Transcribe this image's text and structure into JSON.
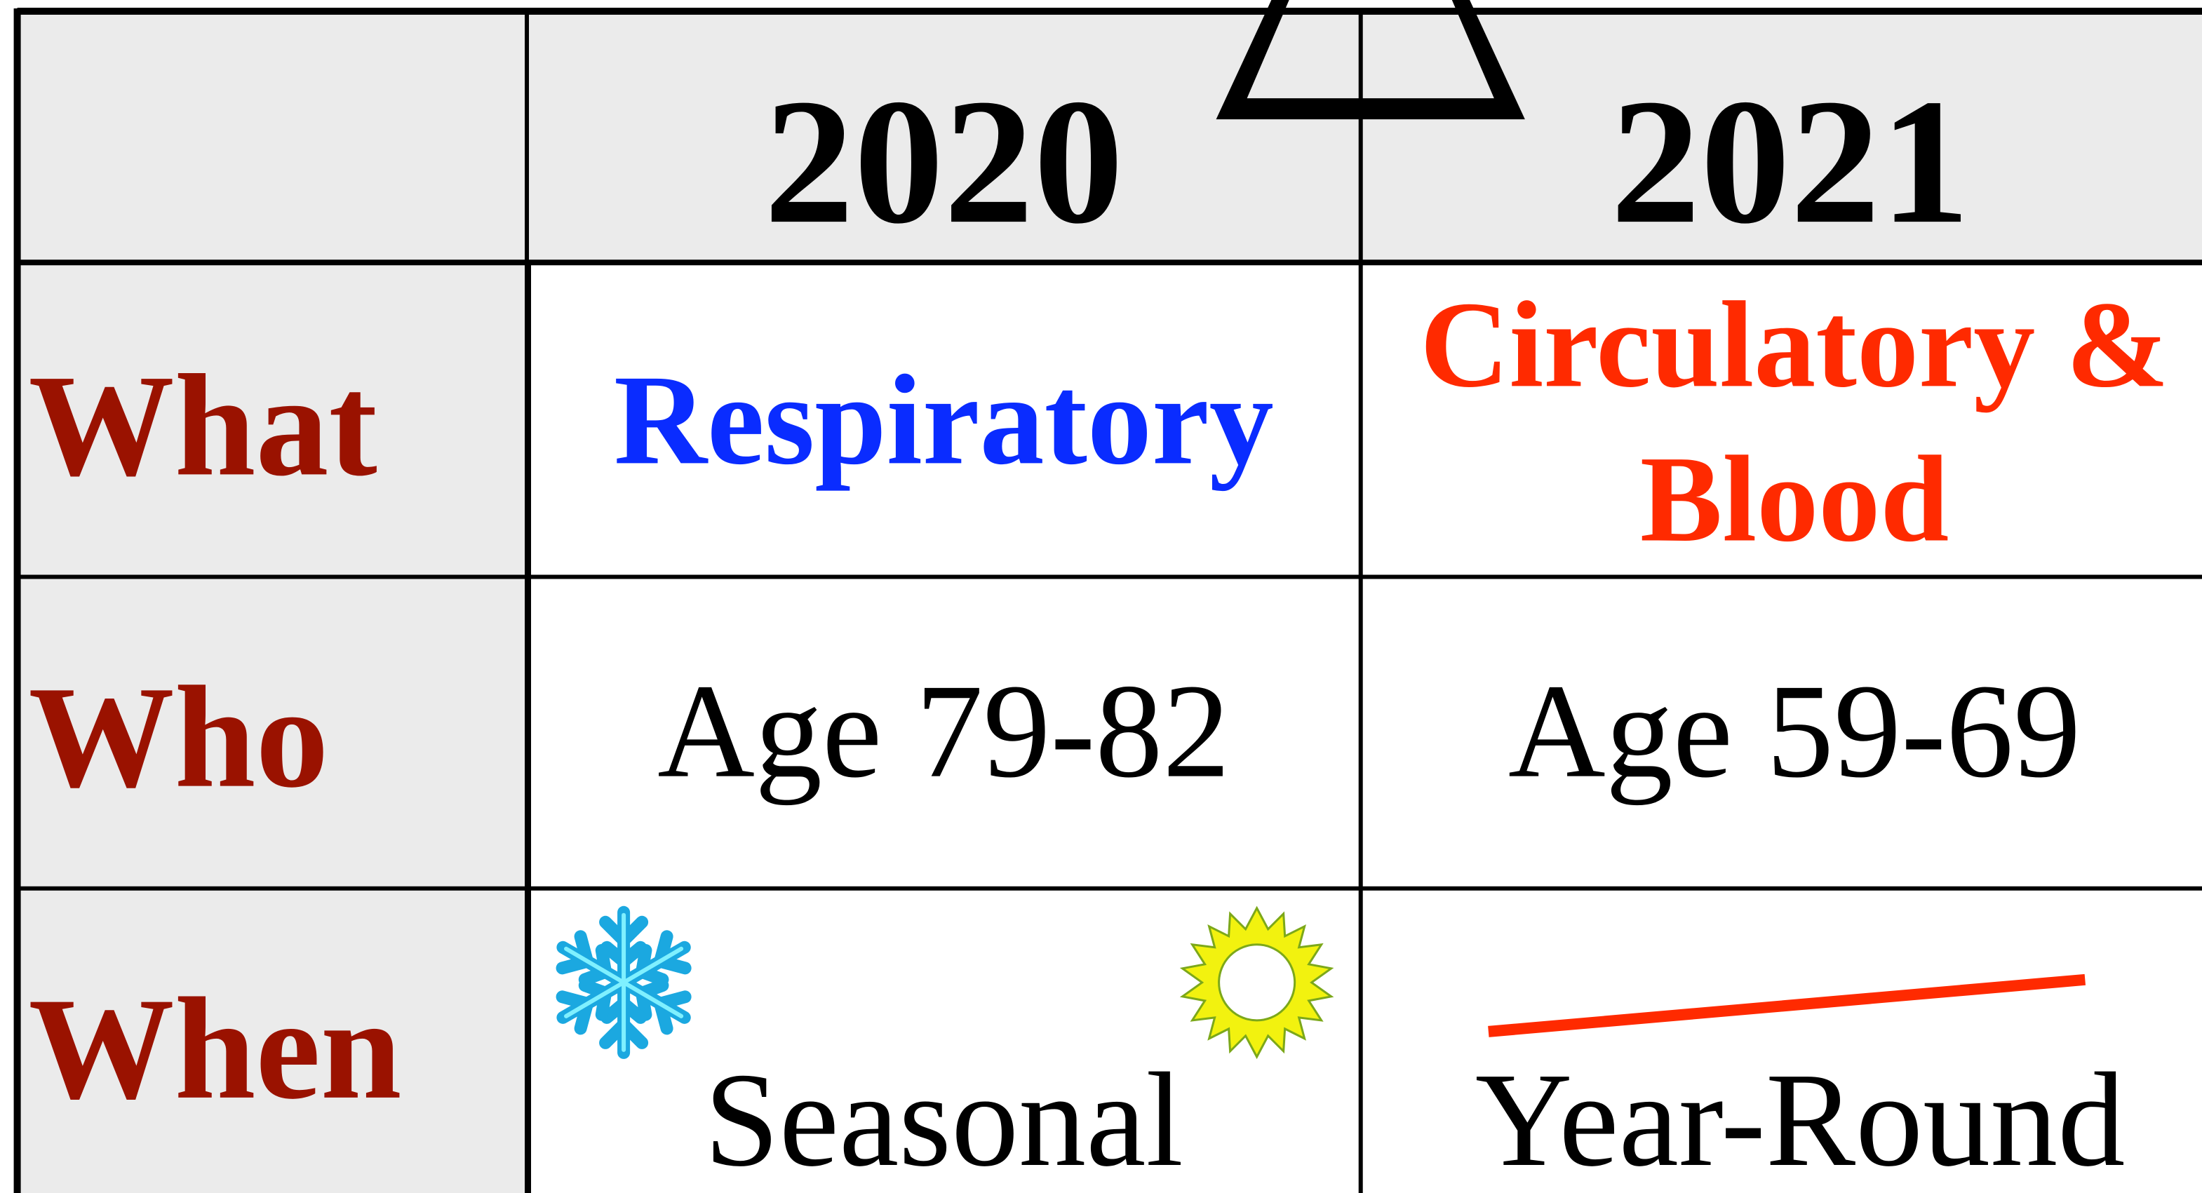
{
  "table": {
    "header": [
      "2020",
      "2021"
    ],
    "rows": [
      {
        "label": "What",
        "cells": [
          [
            "Respiratory"
          ],
          [
            "Circulatory &",
            "Blood"
          ]
        ]
      },
      {
        "label": "Who",
        "cells": [
          [
            "Age 79-82"
          ],
          [
            "Age 59-69"
          ]
        ]
      },
      {
        "label": "When",
        "cells": [
          [
            "Seasonal"
          ],
          [
            "Year-Round"
          ]
        ]
      }
    ]
  }
}
